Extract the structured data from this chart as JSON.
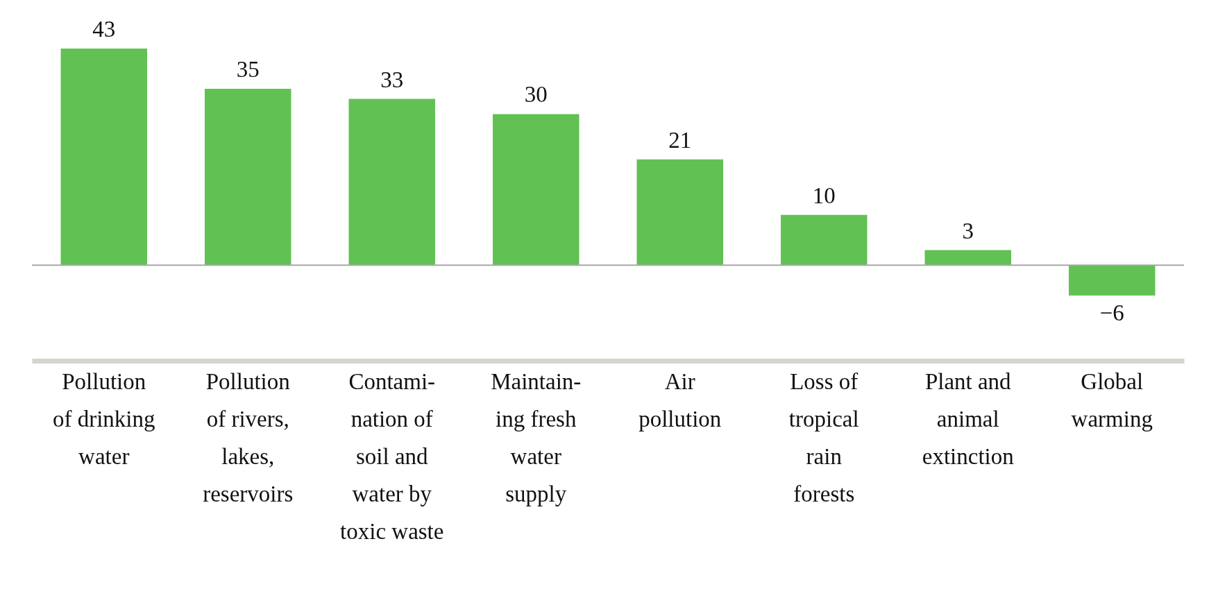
{
  "chart_data": {
    "type": "bar",
    "categories": [
      "Pollution of drinking water",
      "Pollution of rivers, lakes, reservoirs",
      "Contami-nation of soil and water by toxic waste",
      "Maintain-ing fresh water supply",
      "Air pollution",
      "Loss of tropical rain forests",
      "Plant and animal extinction",
      "Global warming"
    ],
    "values": [
      43,
      35,
      33,
      30,
      21,
      10,
      3,
      -6
    ],
    "color": "#62c153",
    "data_labels": true,
    "ref_lines": [
      {
        "axis": "y",
        "value": 0,
        "color": "#a8a8a8"
      }
    ]
  }
}
